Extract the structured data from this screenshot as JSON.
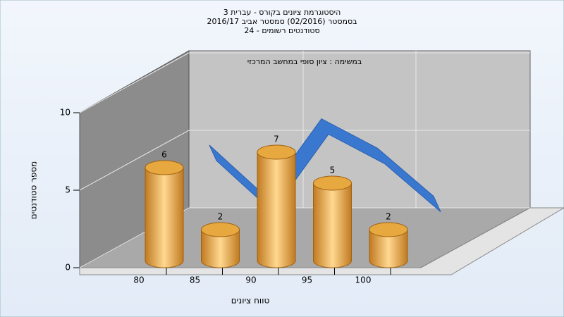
{
  "chart_data": {
    "type": "bar",
    "title": [
      "היסטוגרמת ציונים בקורס - עברית 3",
      "בסמסטר  (02/2016)  סמסטר אביב 2016/17",
      "סטודנטים רשומים - 24"
    ],
    "annotation": "במשימה : ציון סופי במחשב המרכזי",
    "x_label": "טווח ציונים",
    "y_label": "מספר סטודנטים",
    "categories": [
      "80",
      "85",
      "90",
      "95",
      "100"
    ],
    "values": [
      6,
      2,
      7,
      5,
      2
    ],
    "color": "#e8a840",
    "line_values": [
      4.5,
      1.2,
      6.2,
      4.3,
      1.2
    ],
    "line_color": "#3a78d0",
    "ylim": [
      0,
      10
    ],
    "yticks": [
      0,
      5,
      10
    ],
    "grid": true
  }
}
